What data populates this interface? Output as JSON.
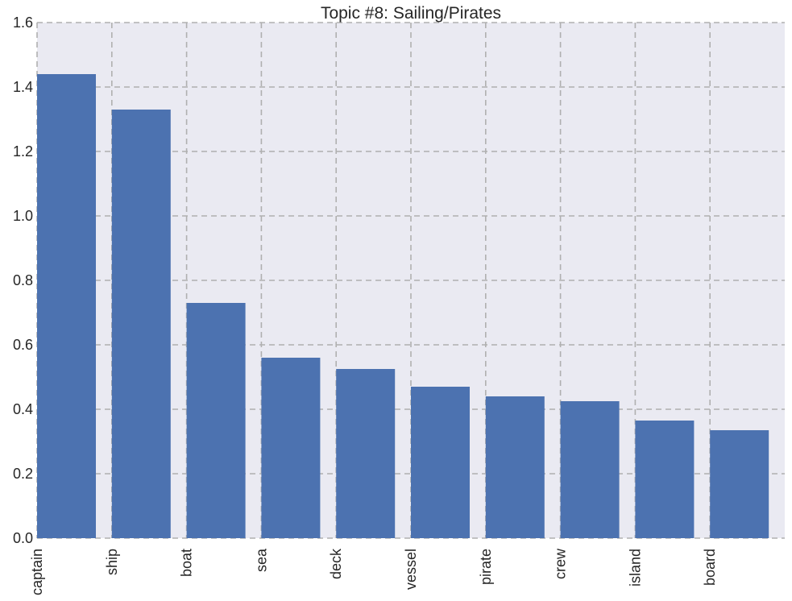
{
  "chart_data": {
    "type": "bar",
    "title": "Topic #8: Sailing/Pirates",
    "xlabel": "",
    "ylabel": "",
    "categories": [
      "captain",
      "ship",
      "boat",
      "sea",
      "deck",
      "vessel",
      "pirate",
      "crew",
      "island",
      "board"
    ],
    "values": [
      1.44,
      1.33,
      0.73,
      0.56,
      0.525,
      0.47,
      0.44,
      0.425,
      0.365,
      0.335
    ],
    "ylim": [
      0,
      1.6
    ],
    "yticks": [
      "0.0",
      "0.2",
      "0.4",
      "0.6",
      "0.8",
      "1.0",
      "1.2",
      "1.4",
      "1.6"
    ],
    "grid": true,
    "colors": {
      "bar": "#4C72B0",
      "plot_background": "#EAEAF2",
      "grid": "#B0B0B0",
      "text": "#262626"
    }
  }
}
